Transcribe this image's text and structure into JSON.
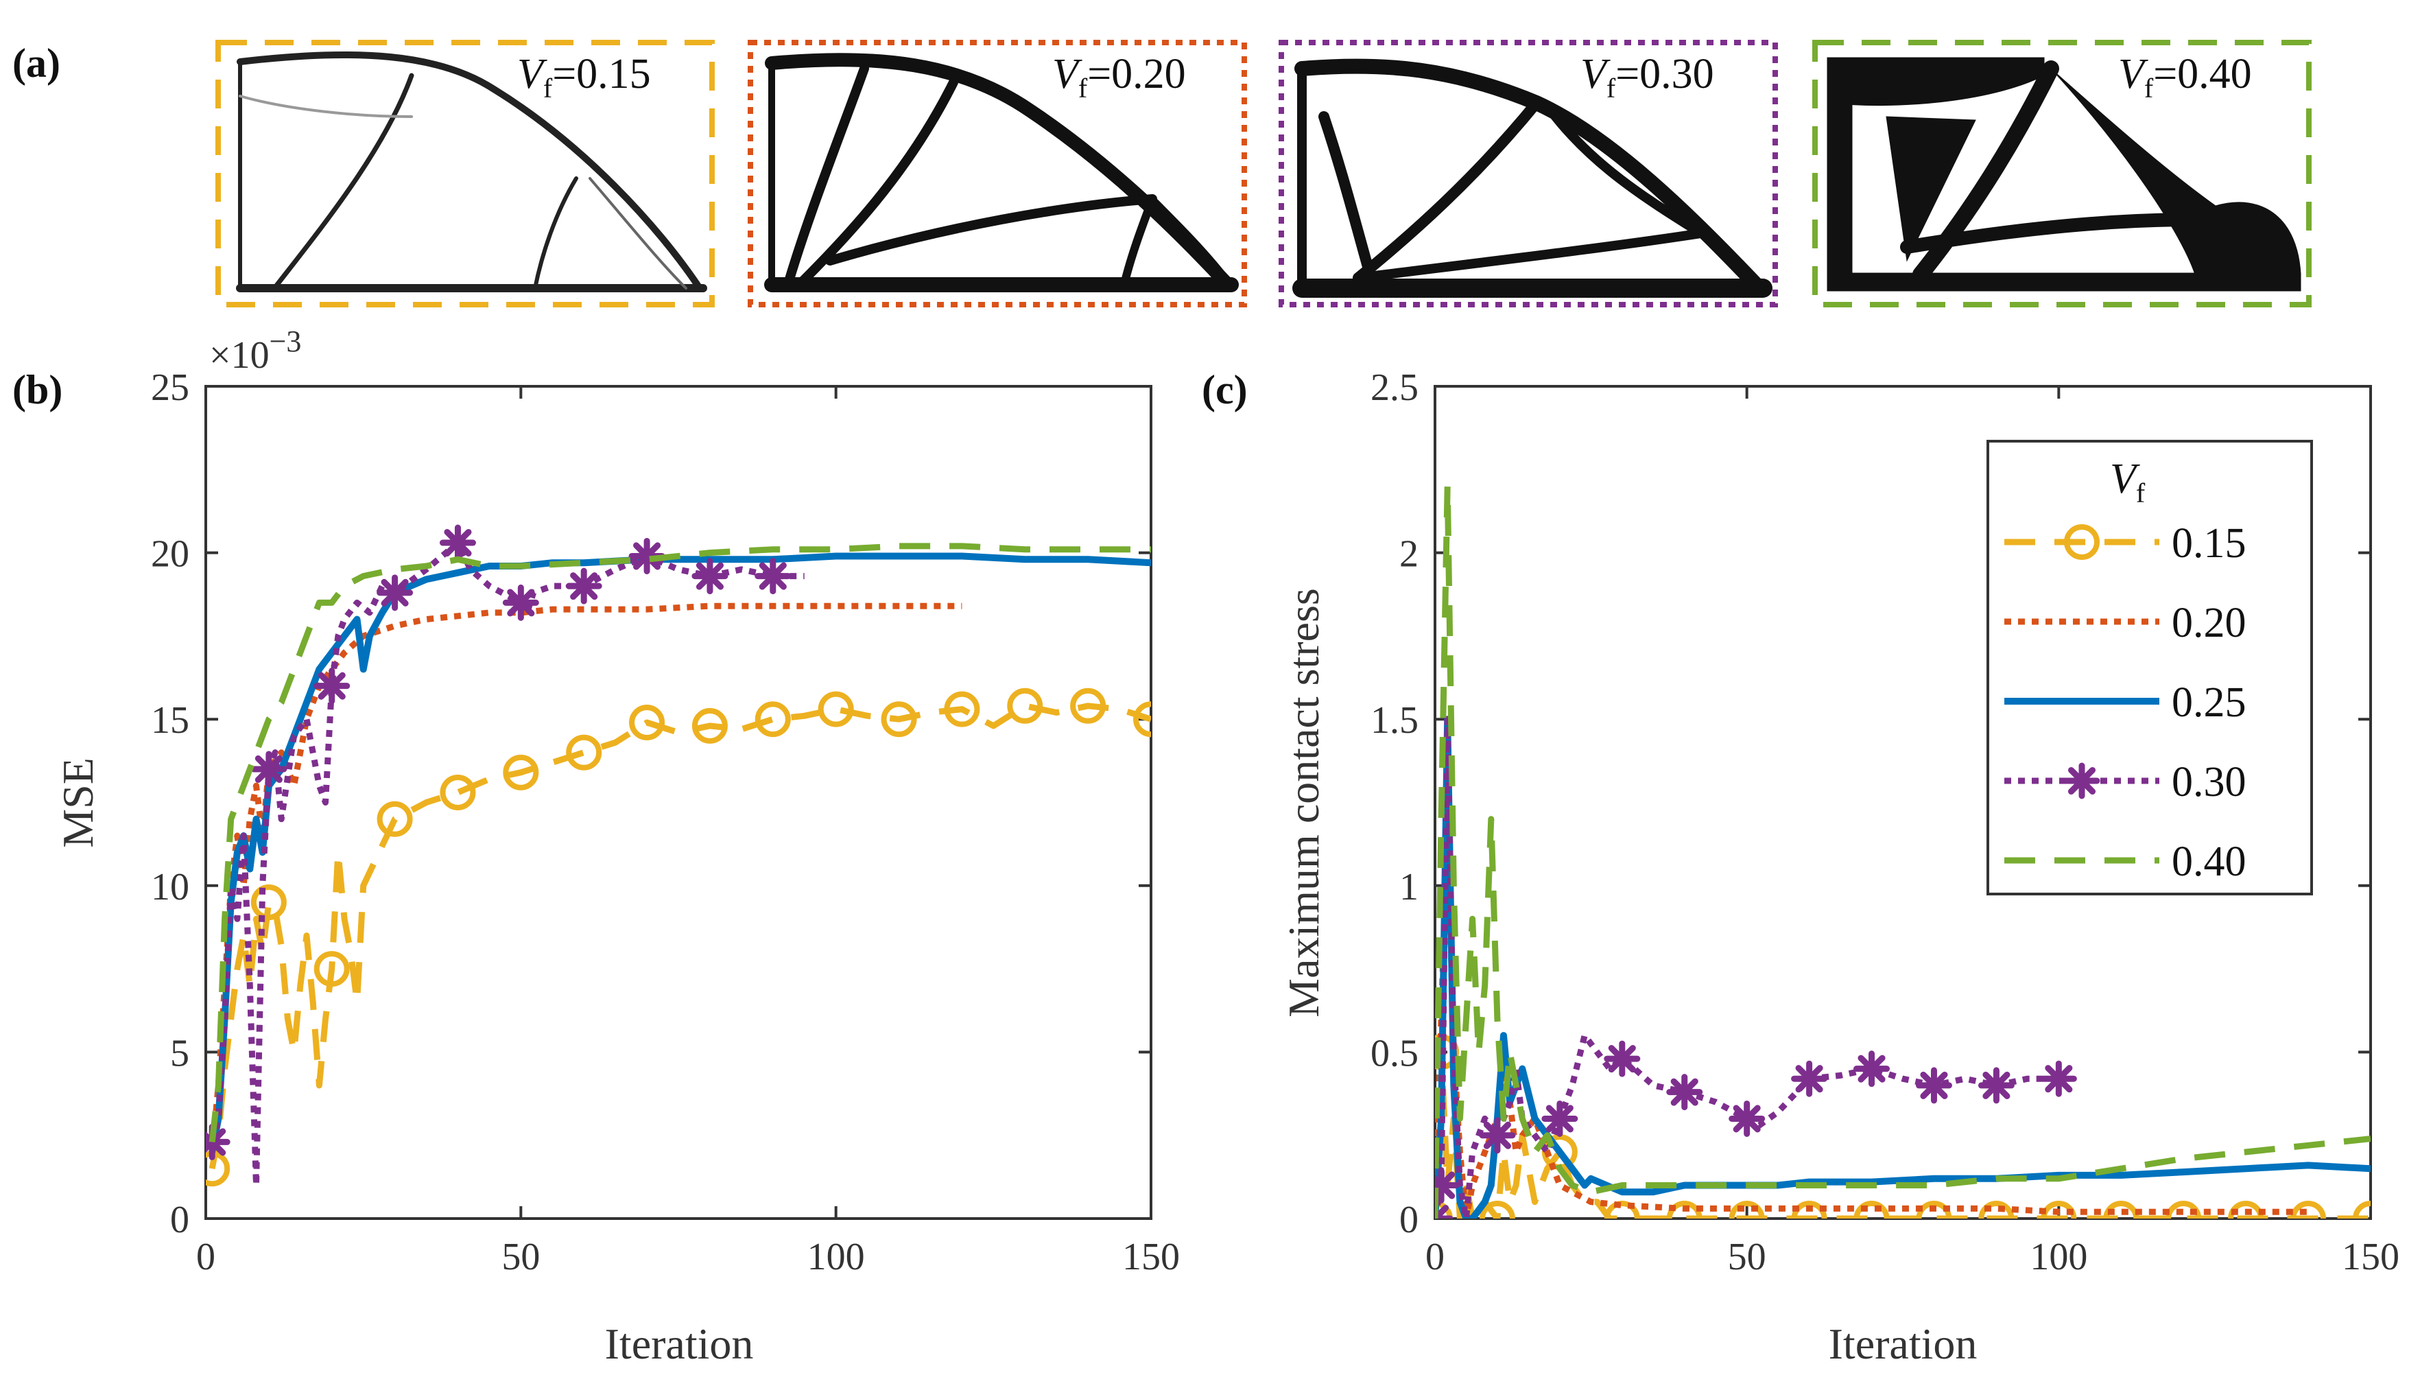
{
  "colors": {
    "c015": "#EDB120",
    "c020": "#D95319",
    "c025": "#0072BD",
    "c030": "#7E2F8E",
    "c040": "#77AC30",
    "axis": "#333333"
  },
  "panel_a": {
    "label": "(a)",
    "vf_symbol": "V",
    "vf_subscript": "f",
    "images": [
      {
        "vf": "=0.15",
        "color": "#EDB120",
        "border": "dashed"
      },
      {
        "vf": "=0.20",
        "color": "#D95319",
        "border": "dotted"
      },
      {
        "vf": "=0.30",
        "color": "#7E2F8E",
        "border": "dotted"
      },
      {
        "vf": "=0.40",
        "color": "#77AC30",
        "border": "dashed"
      }
    ]
  },
  "chart_data": [
    {
      "id": "b",
      "panel_label": "(b)",
      "type": "line",
      "title": "",
      "xlabel": "Iteration",
      "ylabel": "MSE",
      "exponent_main": "×10",
      "exponent_power": "−3",
      "xlim": [
        0,
        150
      ],
      "ylim": [
        0,
        25
      ],
      "xticks": [
        0,
        50,
        100,
        150
      ],
      "yticks": [
        0,
        5,
        10,
        15,
        20,
        25
      ],
      "series": [
        {
          "name": "0.15",
          "color": "#EDB120",
          "dash": "45,28",
          "width": 9,
          "marker": "circle",
          "marker_every": 10,
          "x": [
            1,
            2,
            3,
            4,
            5,
            6,
            7,
            8,
            9,
            10,
            11,
            12,
            13,
            14,
            15,
            16,
            17,
            18,
            19,
            20,
            21,
            22,
            23,
            24,
            25,
            30,
            35,
            40,
            45,
            50,
            55,
            60,
            65,
            70,
            75,
            80,
            85,
            90,
            95,
            100,
            105,
            110,
            115,
            120,
            125,
            130,
            135,
            140,
            145,
            150
          ],
          "y": [
            1.5,
            2.5,
            4.5,
            6.0,
            7.5,
            8.5,
            7.0,
            9.0,
            8.0,
            9.5,
            9.3,
            8.2,
            6.0,
            5.0,
            7.0,
            8.5,
            6.5,
            4.0,
            6.0,
            7.5,
            11.0,
            9.0,
            8.0,
            6.5,
            10.0,
            12.0,
            12.5,
            12.8,
            13.2,
            13.4,
            13.7,
            14.0,
            14.3,
            14.9,
            14.6,
            14.8,
            14.7,
            15.0,
            15.1,
            15.3,
            15.1,
            15.0,
            15.2,
            15.3,
            14.8,
            15.4,
            15.2,
            15.4,
            15.3,
            15.0
          ]
        },
        {
          "name": "0.20",
          "color": "#D95319",
          "dash": "10,10",
          "width": 9,
          "marker": "none",
          "x": [
            1,
            2,
            3,
            4,
            5,
            6,
            7,
            8,
            9,
            10,
            12,
            14,
            16,
            18,
            20,
            22,
            25,
            30,
            35,
            40,
            45,
            50,
            55,
            60,
            70,
            80,
            90,
            100,
            110,
            120
          ],
          "y": [
            2.0,
            4.0,
            7.0,
            10.0,
            11.5,
            10.0,
            12.0,
            13.0,
            11.5,
            13.5,
            14.0,
            13.0,
            15.0,
            16.0,
            16.5,
            17.0,
            17.5,
            17.8,
            18.0,
            18.1,
            18.2,
            18.2,
            18.3,
            18.3,
            18.3,
            18.4,
            18.4,
            18.4,
            18.4,
            18.4
          ]
        },
        {
          "name": "0.25",
          "color": "#0072BD",
          "dash": "",
          "width": 10,
          "marker": "none",
          "x": [
            1,
            2,
            3,
            4,
            5,
            6,
            7,
            8,
            9,
            10,
            12,
            14,
            16,
            18,
            20,
            22,
            24,
            25,
            26,
            28,
            30,
            35,
            40,
            45,
            50,
            55,
            60,
            70,
            80,
            90,
            100,
            110,
            120,
            130,
            140,
            150
          ],
          "y": [
            2.0,
            3.0,
            6.0,
            9.5,
            11.0,
            11.5,
            10.5,
            12.0,
            11.0,
            13.0,
            13.5,
            14.5,
            15.5,
            16.5,
            17.0,
            17.5,
            18.0,
            16.5,
            17.5,
            18.2,
            18.8,
            19.2,
            19.4,
            19.6,
            19.6,
            19.7,
            19.7,
            19.8,
            19.8,
            19.8,
            19.9,
            19.9,
            19.9,
            19.8,
            19.8,
            19.7
          ]
        },
        {
          "name": "0.30",
          "color": "#7E2F8E",
          "dash": "10,10",
          "width": 9,
          "marker": "star",
          "marker_every": 10,
          "x": [
            1,
            2,
            3,
            4,
            5,
            6,
            7,
            8,
            9,
            10,
            11,
            12,
            14,
            16,
            18,
            19,
            20,
            21,
            22,
            24,
            26,
            28,
            30,
            35,
            40,
            42,
            45,
            50,
            51,
            52,
            55,
            60,
            65,
            70,
            75,
            80,
            85,
            90,
            95
          ],
          "y": [
            2.3,
            3.0,
            6.0,
            10.0,
            9.0,
            11.5,
            7.0,
            1.0,
            10.0,
            13.5,
            14.0,
            12.0,
            14.5,
            15.0,
            13.0,
            12.5,
            16.0,
            17.5,
            18.0,
            18.5,
            18.2,
            19.0,
            18.8,
            19.5,
            20.3,
            19.5,
            19.0,
            18.5,
            18.2,
            18.8,
            19.0,
            19.0,
            19.5,
            19.9,
            19.5,
            19.3,
            19.5,
            19.3,
            19.3
          ]
        },
        {
          "name": "0.40",
          "color": "#77AC30",
          "dash": "45,28",
          "width": 9,
          "marker": "none",
          "x": [
            1,
            2,
            3,
            4,
            5,
            6,
            7,
            8,
            9,
            10,
            12,
            14,
            16,
            18,
            20,
            22,
            25,
            30,
            35,
            40,
            45,
            50,
            60,
            70,
            80,
            90,
            100,
            110,
            120,
            130,
            140,
            150
          ],
          "y": [
            2.3,
            4.0,
            9.0,
            12.0,
            12.5,
            13.0,
            13.5,
            14.0,
            14.5,
            15.0,
            15.5,
            16.5,
            17.5,
            18.5,
            18.5,
            19.0,
            19.3,
            19.5,
            19.6,
            19.8,
            19.6,
            19.6,
            19.7,
            19.8,
            20.0,
            20.1,
            20.1,
            20.2,
            20.2,
            20.1,
            20.1,
            20.1
          ]
        }
      ]
    },
    {
      "id": "c",
      "panel_label": "(c)",
      "type": "line",
      "title": "",
      "xlabel": "Iteration",
      "ylabel": "Maximum contact stress",
      "xlim": [
        0,
        150
      ],
      "ylim": [
        0,
        2.5
      ],
      "xticks": [
        0,
        50,
        100,
        150
      ],
      "yticks": [
        0,
        0.5,
        1,
        1.5,
        2,
        2.5
      ],
      "ytick_labels": [
        "0",
        "0.5",
        "1",
        "1.5",
        "2",
        "2.5"
      ],
      "legend": {
        "title_symbol": "V",
        "title_subscript": "f",
        "location": "top-right",
        "entries": [
          "0.15",
          "0.20",
          "0.25",
          "0.30",
          "0.40"
        ]
      },
      "series": [
        {
          "name": "0.15",
          "color": "#EDB120",
          "dash": "45,28",
          "width": 9,
          "marker": "circle",
          "marker_every": 10,
          "x": [
            0,
            1,
            2,
            3,
            4,
            5,
            6,
            8,
            10,
            11,
            12,
            13,
            14,
            15,
            16,
            18,
            20,
            22,
            24,
            26,
            28,
            30,
            40,
            50,
            60,
            70,
            80,
            90,
            100,
            110,
            120,
            130,
            140,
            150
          ],
          "y": [
            0,
            0.5,
            0.1,
            0.3,
            0,
            0.1,
            0,
            0.05,
            0,
            0.2,
            0.05,
            0.1,
            0.25,
            0.15,
            0.05,
            0.15,
            0.2,
            0.1,
            0.05,
            0.05,
            0,
            0,
            0,
            0,
            0,
            0,
            0,
            0,
            0,
            0,
            0,
            0,
            0,
            0
          ]
        },
        {
          "name": "0.20",
          "color": "#D95319",
          "dash": "10,10",
          "width": 9,
          "marker": "none",
          "x": [
            0,
            1,
            2,
            3,
            4,
            5,
            6,
            8,
            10,
            11,
            12,
            13,
            14,
            16,
            18,
            20,
            22,
            25,
            30,
            40,
            50,
            60,
            70,
            80,
            90,
            100,
            110,
            120,
            130,
            140
          ],
          "y": [
            0,
            0.6,
            1.2,
            0.5,
            0.2,
            0,
            0.1,
            0.2,
            0.3,
            0.45,
            0.35,
            0.2,
            0.25,
            0.3,
            0.2,
            0.1,
            0.08,
            0.05,
            0.04,
            0.03,
            0.03,
            0.03,
            0.03,
            0.03,
            0.03,
            0.02,
            0.02,
            0.02,
            0.02,
            0.02
          ]
        },
        {
          "name": "0.25",
          "color": "#0072BD",
          "dash": "",
          "width": 10,
          "marker": "none",
          "x": [
            0,
            1,
            2,
            3,
            4,
            5,
            6,
            8,
            9,
            10,
            11,
            12,
            13,
            14,
            16,
            18,
            20,
            22,
            24,
            25,
            30,
            35,
            40,
            45,
            50,
            55,
            60,
            70,
            80,
            90,
            100,
            110,
            120,
            130,
            140,
            150
          ],
          "y": [
            0,
            0.3,
            1.5,
            0.4,
            0.05,
            0,
            0,
            0.05,
            0.1,
            0.3,
            0.55,
            0.35,
            0.4,
            0.45,
            0.3,
            0.25,
            0.2,
            0.15,
            0.1,
            0.12,
            0.08,
            0.08,
            0.1,
            0.1,
            0.1,
            0.1,
            0.11,
            0.11,
            0.12,
            0.12,
            0.13,
            0.13,
            0.14,
            0.15,
            0.16,
            0.15
          ]
        },
        {
          "name": "0.30",
          "color": "#7E2F8E",
          "dash": "10,10",
          "width": 9,
          "marker": "star",
          "marker_every": 10,
          "x": [
            0,
            1,
            2,
            3,
            4,
            5,
            6,
            8,
            10,
            11,
            12,
            13,
            14,
            16,
            18,
            20,
            22,
            24,
            26,
            28,
            30,
            32,
            35,
            40,
            45,
            50,
            52,
            55,
            60,
            65,
            70,
            75,
            80,
            85,
            90,
            95,
            100
          ],
          "y": [
            0,
            0.1,
            1.5,
            0.5,
            0.1,
            0,
            0.2,
            0.3,
            0.25,
            0.3,
            0.35,
            0.45,
            0.3,
            0.25,
            0.2,
            0.3,
            0.4,
            0.55,
            0.5,
            0.45,
            0.48,
            0.45,
            0.4,
            0.38,
            0.35,
            0.3,
            0.28,
            0.32,
            0.42,
            0.43,
            0.45,
            0.42,
            0.4,
            0.42,
            0.4,
            0.42,
            0.42
          ]
        },
        {
          "name": "0.40",
          "color": "#77AC30",
          "dash": "45,28",
          "width": 9,
          "marker": "none",
          "x": [
            0,
            1,
            2,
            3,
            4,
            5,
            6,
            7,
            8,
            9,
            10,
            11,
            12,
            14,
            16,
            18,
            20,
            22,
            25,
            30,
            35,
            40,
            50,
            60,
            70,
            80,
            90,
            100,
            110,
            120,
            130,
            140,
            150
          ],
          "y": [
            0,
            1.2,
            2.2,
            1.0,
            0.3,
            0.6,
            0.9,
            0.5,
            0.7,
            1.2,
            0.6,
            0.3,
            0.5,
            0.3,
            0.2,
            0.25,
            0.15,
            0.1,
            0.08,
            0.1,
            0.1,
            0.1,
            0.1,
            0.1,
            0.1,
            0.1,
            0.12,
            0.12,
            0.15,
            0.18,
            0.2,
            0.22,
            0.24
          ]
        }
      ]
    }
  ]
}
